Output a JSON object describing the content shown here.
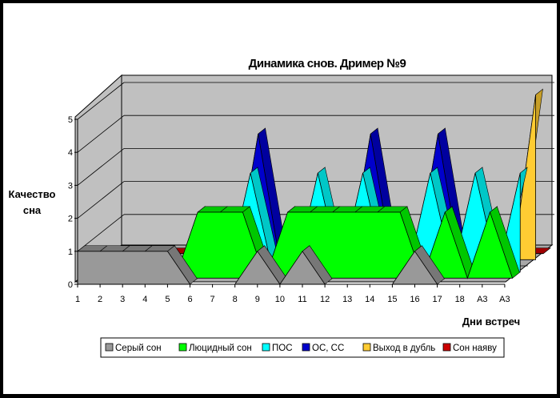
{
  "chart_data": {
    "type": "area",
    "title": "Динамика снов.  Дример №9",
    "ylabel_line1": "Качество",
    "ylabel_line2": "сна",
    "xlabel": "Дни встреч",
    "ylim": [
      0,
      5
    ],
    "yticks": [
      "0",
      "1",
      "2",
      "3",
      "4",
      "5"
    ],
    "categories": [
      "1",
      "2",
      "3",
      "4",
      "5",
      "6",
      "7",
      "8",
      "9",
      "10",
      "11",
      "12",
      "13",
      "14",
      "15",
      "16",
      "17",
      "18",
      "А3",
      "А3"
    ],
    "grid": true,
    "legend_position": "bottom",
    "style": "3d",
    "series": [
      {
        "name": "Серый сон",
        "color": "#999999",
        "values": [
          1,
          1,
          1,
          1,
          1,
          0,
          0,
          0,
          1,
          0,
          1,
          0,
          0,
          0,
          0,
          1,
          0,
          0,
          0,
          0
        ]
      },
      {
        "name": "Люцидный сон",
        "color": "#00ff00",
        "values": [
          0,
          0,
          0,
          0,
          0,
          2,
          2,
          2,
          0,
          2,
          2,
          2,
          2,
          2,
          2,
          0,
          2,
          0,
          2,
          0
        ]
      },
      {
        "name": "ПОС",
        "color": "#00ffff",
        "values": [
          0,
          0,
          0,
          0,
          0,
          0,
          0,
          3,
          0,
          0,
          3,
          0,
          3,
          0,
          0,
          3,
          0,
          3,
          0,
          3
        ]
      },
      {
        "name": "ОС, СС",
        "color": "#0000cc",
        "values": [
          0,
          0,
          0,
          0,
          0,
          0,
          0,
          4,
          0,
          0,
          0,
          0,
          4,
          0,
          0,
          4,
          0,
          0,
          0,
          0
        ]
      },
      {
        "name": "Выход в дубль",
        "color": "#ffcc33",
        "values": [
          0,
          0,
          0,
          0,
          0,
          0,
          0,
          0,
          0,
          0,
          0,
          0,
          0,
          0,
          0,
          0,
          0,
          0,
          0,
          5
        ]
      },
      {
        "name": "Сон наяву",
        "color": "#cc0000",
        "values": [
          0,
          0,
          0,
          0,
          0,
          0,
          0,
          0,
          0,
          0,
          0,
          0,
          0,
          0,
          0,
          0,
          0,
          0,
          0,
          0
        ]
      }
    ]
  }
}
